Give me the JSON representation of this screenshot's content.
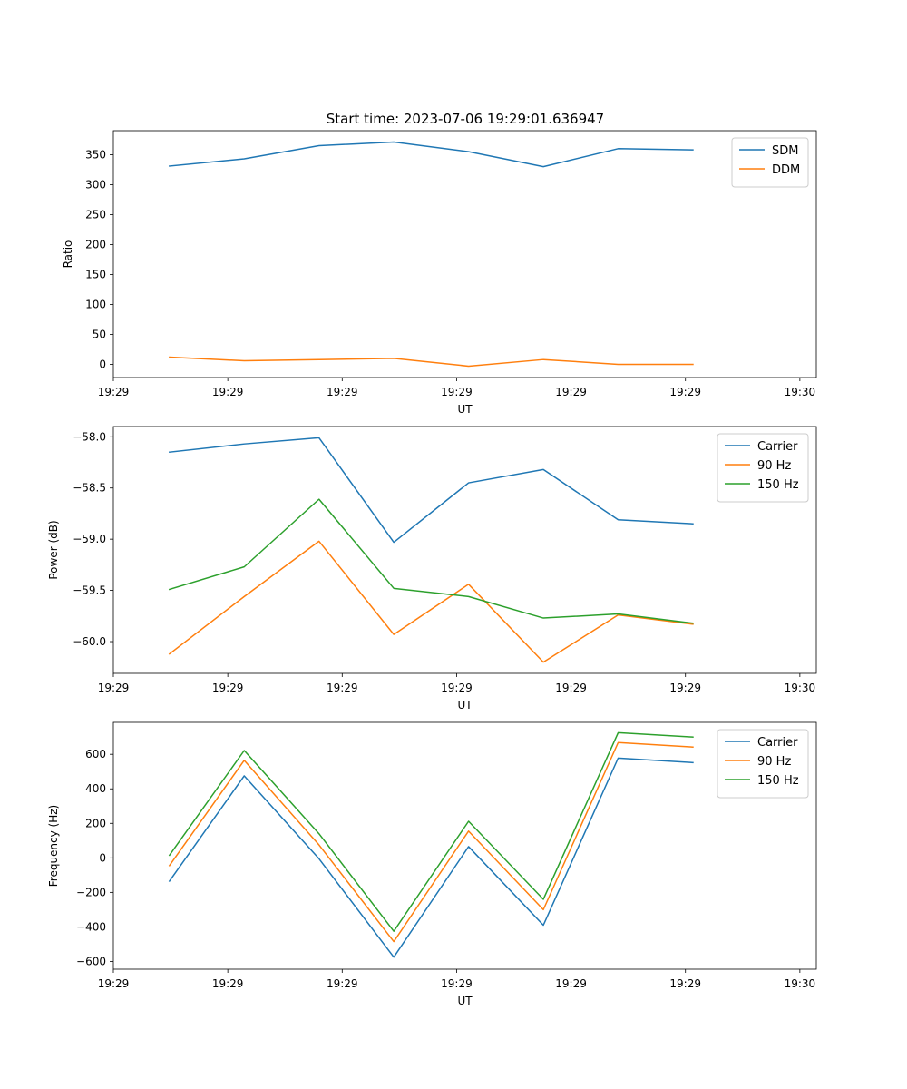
{
  "figure_title": "Start time: 2023-07-06 19:29:01.636947",
  "colors": {
    "c0": "#1f77b4",
    "c1": "#ff7f0e",
    "c2": "#2ca02c"
  },
  "chart_data": [
    {
      "type": "line",
      "title": "Start time: 2023-07-06 19:29:01.636947",
      "xlabel": "UT",
      "ylabel": "Ratio",
      "x_index": [
        0,
        1,
        2,
        3,
        4,
        5,
        6,
        7
      ],
      "xlim": [
        -0.75,
        8.65
      ],
      "ylim": [
        -22,
        390
      ],
      "xticks": [
        -0.75,
        0.78,
        2.31,
        3.84,
        5.37,
        6.9,
        8.43
      ],
      "xtick_labels": [
        "19:29",
        "19:29",
        "19:29",
        "19:29",
        "19:29",
        "19:29",
        "19:30"
      ],
      "yticks": [
        0,
        50,
        100,
        150,
        200,
        250,
        300,
        350
      ],
      "yticks_labels": [
        "0",
        "50",
        "100",
        "150",
        "200",
        "250",
        "300",
        "350"
      ],
      "legend_loc": "top-right",
      "series": [
        {
          "name": "SDM",
          "color": "#1f77b4",
          "values": [
            331,
            343,
            365,
            371,
            355,
            330,
            360,
            358
          ]
        },
        {
          "name": "DDM",
          "color": "#ff7f0e",
          "values": [
            12,
            6,
            8,
            10,
            -3,
            8,
            0,
            0
          ]
        }
      ]
    },
    {
      "type": "line",
      "title": "",
      "xlabel": "UT",
      "ylabel": "Power (dB)",
      "x_index": [
        0,
        1,
        2,
        3,
        4,
        5,
        6,
        7
      ],
      "xlim": [
        -0.75,
        8.65
      ],
      "ylim": [
        -60.31,
        -57.9
      ],
      "xticks": [
        -0.75,
        0.78,
        2.31,
        3.84,
        5.37,
        6.9,
        8.43
      ],
      "xtick_labels": [
        "19:29",
        "19:29",
        "19:29",
        "19:29",
        "19:29",
        "19:29",
        "19:30"
      ],
      "yticks": [
        -60.0,
        -59.5,
        -59.0,
        -58.5,
        -58.0
      ],
      "yticks_labels": [
        "−60.0",
        "−59.5",
        "−59.0",
        "−58.5",
        "−58.0"
      ],
      "legend_loc": "top-right",
      "series": [
        {
          "name": "Carrier",
          "color": "#1f77b4",
          "values": [
            -58.15,
            -58.07,
            -58.01,
            -59.03,
            -58.45,
            -58.32,
            -58.81,
            -58.85
          ]
        },
        {
          "name": "90 Hz",
          "color": "#ff7f0e",
          "values": [
            -60.12,
            -59.56,
            -59.02,
            -59.93,
            -59.44,
            -60.2,
            -59.74,
            -59.83
          ]
        },
        {
          "name": "150 Hz",
          "color": "#2ca02c",
          "values": [
            -59.49,
            -59.27,
            -58.61,
            -59.48,
            -59.56,
            -59.77,
            -59.73,
            -59.82
          ]
        }
      ]
    },
    {
      "type": "line",
      "title": "",
      "xlabel": "UT",
      "ylabel": "Frequency (Hz)",
      "x_index": [
        0,
        1,
        2,
        3,
        4,
        5,
        6,
        7
      ],
      "xlim": [
        -0.75,
        8.65
      ],
      "ylim": [
        -645,
        785
      ],
      "xticks": [
        -0.75,
        0.78,
        2.31,
        3.84,
        5.37,
        6.9,
        8.43
      ],
      "xtick_labels": [
        "19:29",
        "19:29",
        "19:29",
        "19:29",
        "19:29",
        "19:29",
        "19:30"
      ],
      "yticks": [
        -600,
        -400,
        -200,
        0,
        200,
        400,
        600
      ],
      "yticks_labels": [
        "−600",
        "−400",
        "−200",
        "0",
        "200",
        "400",
        "600"
      ],
      "legend_loc": "top-right",
      "series": [
        {
          "name": "Carrier",
          "color": "#1f77b4",
          "values": [
            -135,
            475,
            -5,
            -575,
            65,
            -390,
            578,
            552
          ]
        },
        {
          "name": "90 Hz",
          "color": "#ff7f0e",
          "values": [
            -45,
            565,
            75,
            -485,
            155,
            -300,
            668,
            642
          ]
        },
        {
          "name": "150 Hz",
          "color": "#2ca02c",
          "values": [
            15,
            622,
            140,
            -425,
            212,
            -240,
            725,
            700
          ]
        }
      ]
    }
  ]
}
